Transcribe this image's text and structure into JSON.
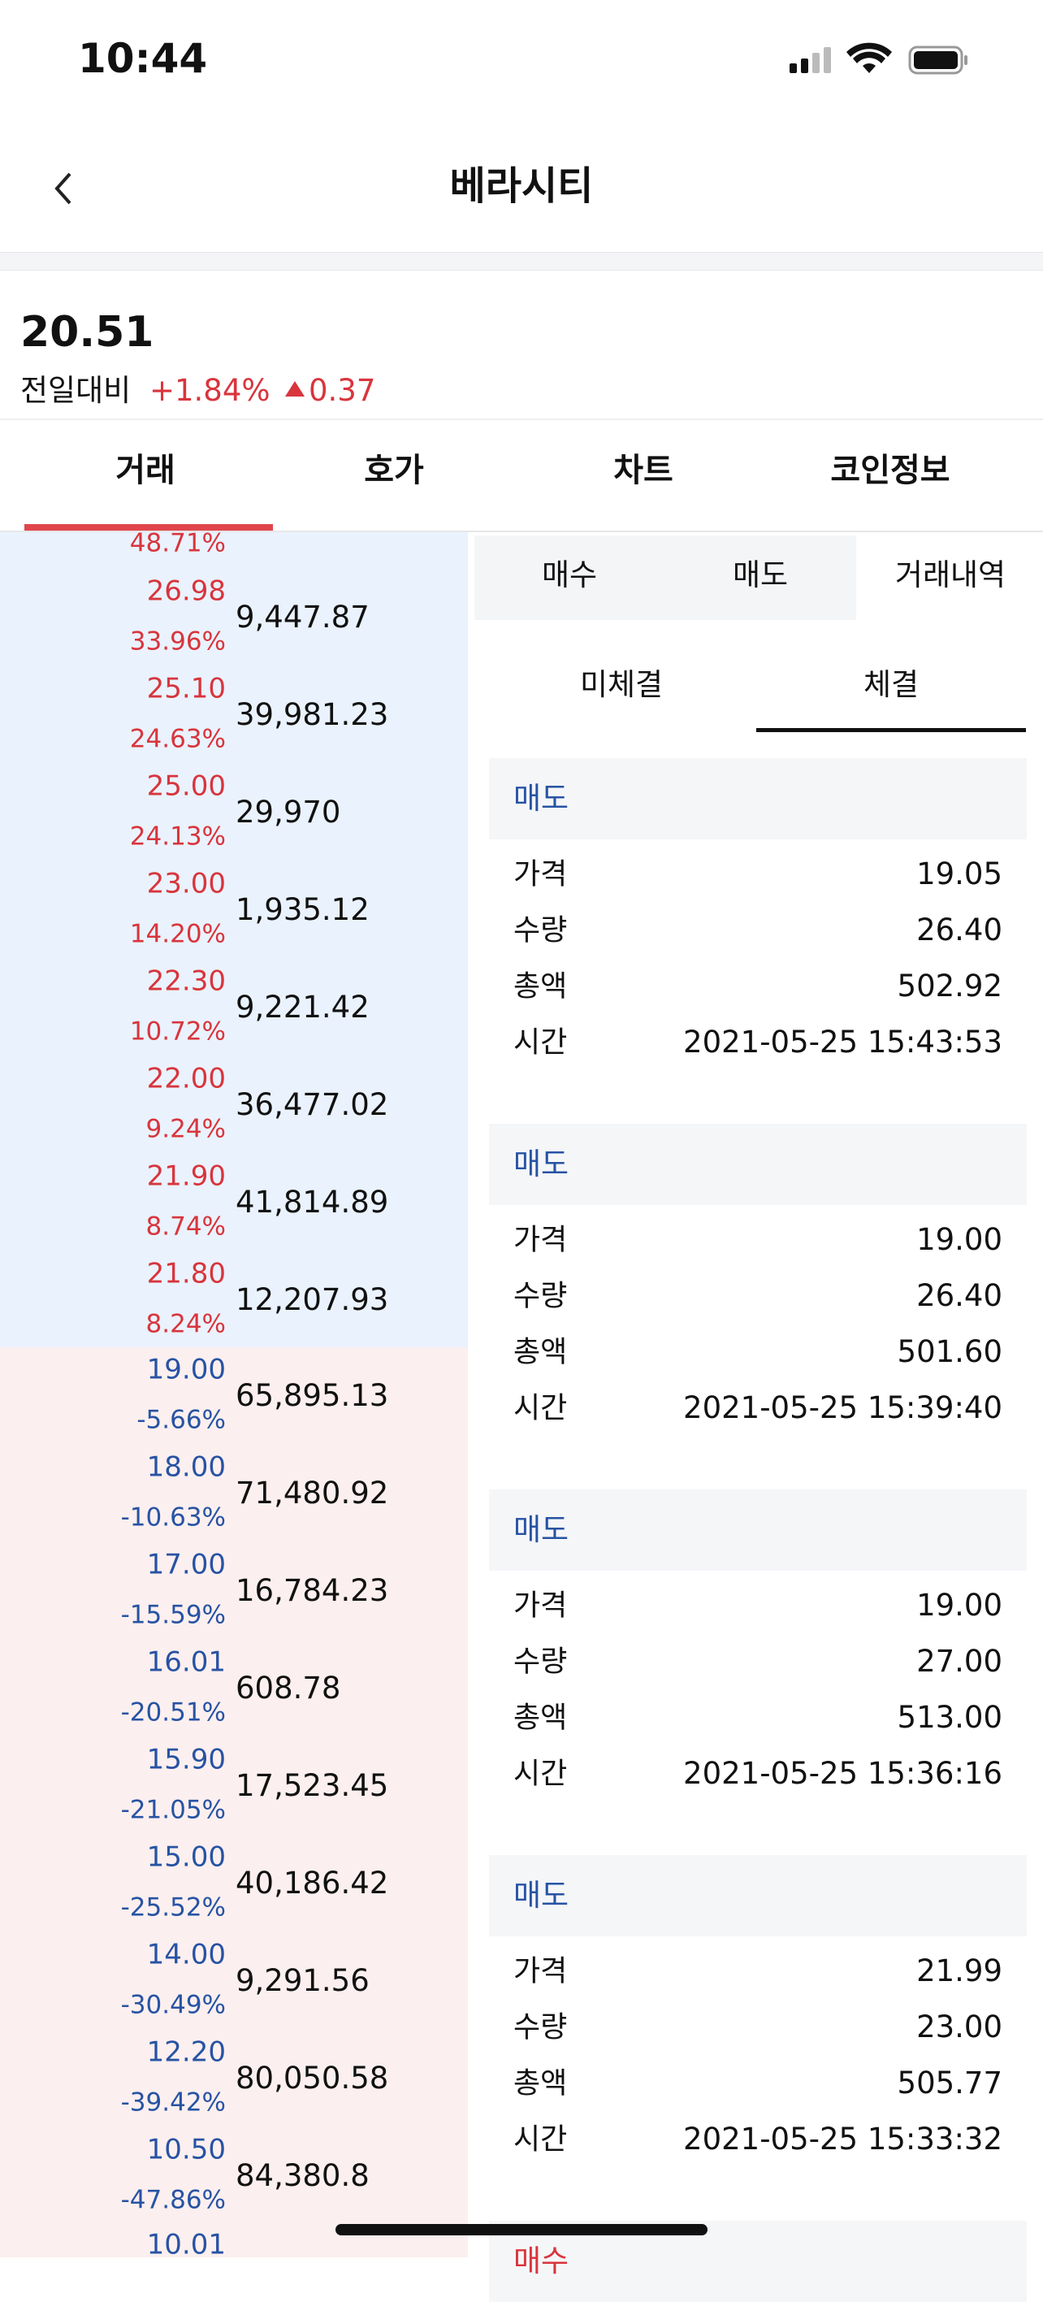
{
  "status_bar": {
    "time": "10:44"
  },
  "header": {
    "title": "베라시티"
  },
  "summary": {
    "price": "20.51",
    "change_label": "전일대비",
    "change_rate": "+1.84%",
    "change_amount": "0.37"
  },
  "tabs": [
    "거래",
    "호가",
    "차트",
    "코인정보"
  ],
  "orderbook": {
    "top_partial": {
      "rate": "48.71%"
    },
    "asks": [
      {
        "price": "26.98",
        "rate": "33.96%",
        "volume": "9,447.87"
      },
      {
        "price": "25.10",
        "rate": "24.63%",
        "volume": "39,981.23"
      },
      {
        "price": "25.00",
        "rate": "24.13%",
        "volume": "29,970"
      },
      {
        "price": "23.00",
        "rate": "14.20%",
        "volume": "1,935.12"
      },
      {
        "price": "22.30",
        "rate": "10.72%",
        "volume": "9,221.42"
      },
      {
        "price": "22.00",
        "rate": "9.24%",
        "volume": "36,477.02"
      },
      {
        "price": "21.90",
        "rate": "8.74%",
        "volume": "41,814.89"
      },
      {
        "price": "21.80",
        "rate": "8.24%",
        "volume": "12,207.93"
      }
    ],
    "bids": [
      {
        "price": "19.00",
        "rate": "-5.66%",
        "volume": "65,895.13"
      },
      {
        "price": "18.00",
        "rate": "-10.63%",
        "volume": "71,480.92"
      },
      {
        "price": "17.00",
        "rate": "-15.59%",
        "volume": "16,784.23"
      },
      {
        "price": "16.01",
        "rate": "-20.51%",
        "volume": "608.78"
      },
      {
        "price": "15.90",
        "rate": "-21.05%",
        "volume": "17,523.45"
      },
      {
        "price": "15.00",
        "rate": "-25.52%",
        "volume": "40,186.42"
      },
      {
        "price": "14.00",
        "rate": "-30.49%",
        "volume": "9,291.56"
      },
      {
        "price": "12.20",
        "rate": "-39.42%",
        "volume": "80,050.58"
      },
      {
        "price": "10.50",
        "rate": "-47.86%",
        "volume": "84,380.8"
      }
    ],
    "bottom_partial": {
      "price": "10.01"
    }
  },
  "trade_tabs": [
    "매수",
    "매도",
    "거래내역"
  ],
  "history_tabs": [
    "미체결",
    "체결"
  ],
  "trades": [
    {
      "side": "매도",
      "rows": [
        {
          "label": "가격",
          "value": "19.05"
        },
        {
          "label": "수량",
          "value": "26.40"
        },
        {
          "label": "총액",
          "value": "502.92"
        },
        {
          "label": "시간",
          "value": "2021-05-25 15:43:53"
        }
      ]
    },
    {
      "side": "매도",
      "rows": [
        {
          "label": "가격",
          "value": "19.00"
        },
        {
          "label": "수량",
          "value": "26.40"
        },
        {
          "label": "총액",
          "value": "501.60"
        },
        {
          "label": "시간",
          "value": "2021-05-25 15:39:40"
        }
      ]
    },
    {
      "side": "매도",
      "rows": [
        {
          "label": "가격",
          "value": "19.00"
        },
        {
          "label": "수량",
          "value": "27.00"
        },
        {
          "label": "총액",
          "value": "513.00"
        },
        {
          "label": "시간",
          "value": "2021-05-25 15:36:16"
        }
      ]
    },
    {
      "side": "매도",
      "rows": [
        {
          "label": "가격",
          "value": "21.99"
        },
        {
          "label": "수량",
          "value": "23.00"
        },
        {
          "label": "총액",
          "value": "505.77"
        },
        {
          "label": "시간",
          "value": "2021-05-25 15:33:32"
        }
      ]
    }
  ],
  "last_partial": {
    "side": "매수"
  }
}
